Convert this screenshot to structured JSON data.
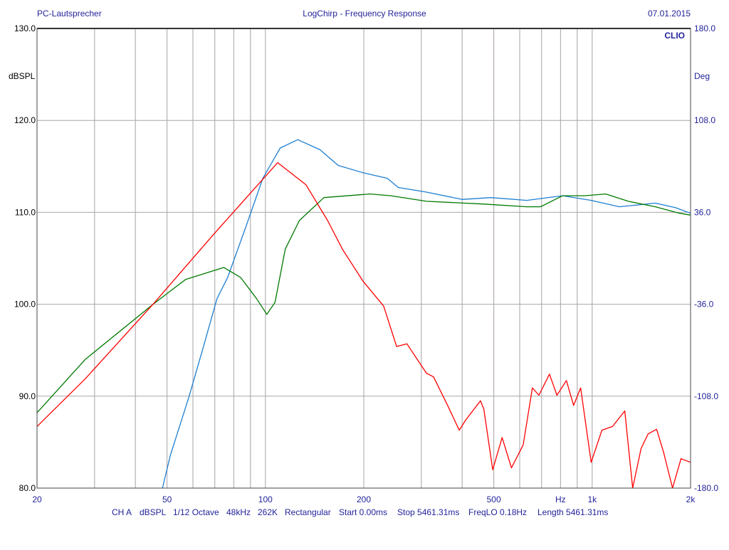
{
  "header": {
    "left": "PC-Lautsprecher",
    "center": "LogChirp - Frequency Response",
    "right": "07.01.2015"
  },
  "brand": "CLIO",
  "footer": [
    "CH A",
    "dBSPL",
    "1/12 Octave",
    "48kHz",
    "262K",
    "Rectangular",
    "Start 0.00ms",
    "Stop 5461.31ms",
    "FreqLO 0.18Hz",
    "Length 5461.31ms"
  ],
  "chart_data": {
    "type": "line",
    "title": "LogChirp - Frequency Response",
    "xlabel": "Hz",
    "ylabel": "dBSPL",
    "y2label": "Deg",
    "xscale": "log",
    "xlim": [
      20,
      2000
    ],
    "ylim": [
      80,
      130
    ],
    "y2lim": [
      -180,
      180
    ],
    "grid": true,
    "x_gridlines": [
      30,
      40,
      50,
      60,
      70,
      80,
      90,
      100,
      200,
      300,
      400,
      500,
      600,
      700,
      800,
      900,
      1000,
      2000
    ],
    "y_gridlines": [
      90,
      100,
      110,
      120
    ],
    "x_ticks": [
      {
        "v": 20,
        "label": "20"
      },
      {
        "v": 50,
        "label": "50"
      },
      {
        "v": 100,
        "label": "100"
      },
      {
        "v": 200,
        "label": "200"
      },
      {
        "v": 500,
        "label": "500"
      },
      {
        "v": 800,
        "label": "Hz"
      },
      {
        "v": 1000,
        "label": "1k"
      },
      {
        "v": 2000,
        "label": "2k"
      }
    ],
    "y_ticks": [
      {
        "v": 130,
        "label": "130.0"
      },
      {
        "v": 120,
        "label": "120.0"
      },
      {
        "v": 110,
        "label": "110.0"
      },
      {
        "v": 100,
        "label": "100.0"
      },
      {
        "v": 90,
        "label": "90.0"
      },
      {
        "v": 80,
        "label": "80.0"
      }
    ],
    "y2_ticks": [
      {
        "v": 130,
        "label": "180.0"
      },
      {
        "v": 120,
        "label": "108.0"
      },
      {
        "v": 110,
        "label": "36.0"
      },
      {
        "v": 100,
        "label": "-36.0"
      },
      {
        "v": 90,
        "label": "-108.0"
      },
      {
        "v": 80,
        "label": "-180.0"
      }
    ],
    "series": [
      {
        "name": "blue",
        "color": "#1e7fd2",
        "points": [
          [
            48.4,
            80
          ],
          [
            51.2,
            83.6
          ],
          [
            58.2,
            89.8
          ],
          [
            64.4,
            95.2
          ],
          [
            71.1,
            100.6
          ],
          [
            76.6,
            102.9
          ],
          [
            86.9,
            108.3
          ],
          [
            98.2,
            113.7
          ],
          [
            111,
            117.0
          ],
          [
            125.6,
            117.9
          ],
          [
            147,
            116.8
          ],
          [
            167,
            115.1
          ],
          [
            199,
            114.3
          ],
          [
            236,
            113.7
          ],
          [
            255,
            112.7
          ],
          [
            311,
            112.2
          ],
          [
            400,
            111.4
          ],
          [
            490,
            111.6
          ],
          [
            631,
            111.3
          ],
          [
            812,
            111.8
          ],
          [
            993,
            111.3
          ],
          [
            1212,
            110.6
          ],
          [
            1560,
            111.0
          ],
          [
            1800,
            110.5
          ],
          [
            2000,
            109.9
          ]
        ]
      },
      {
        "name": "green",
        "color": "#007a00",
        "points": [
          [
            20,
            88.2
          ],
          [
            28.1,
            94.0
          ],
          [
            45.3,
            100
          ],
          [
            57,
            102.7
          ],
          [
            74.6,
            104.0
          ],
          [
            84,
            102.9
          ],
          [
            94,
            100.6
          ],
          [
            101,
            98.9
          ],
          [
            107,
            100.2
          ],
          [
            115,
            106
          ],
          [
            127,
            109.1
          ],
          [
            151,
            111.6
          ],
          [
            209,
            112.0
          ],
          [
            242,
            111.8
          ],
          [
            311,
            111.2
          ],
          [
            466,
            110.9
          ],
          [
            631,
            110.6
          ],
          [
            695,
            110.6
          ],
          [
            812,
            111.8
          ],
          [
            946,
            111.8
          ],
          [
            1100,
            112.0
          ],
          [
            1290,
            111.2
          ],
          [
            1560,
            110.6
          ],
          [
            1850,
            109.9
          ],
          [
            2000,
            109.7
          ]
        ]
      },
      {
        "name": "red",
        "color": "#ff0000",
        "points": [
          [
            20,
            86.7
          ],
          [
            28.1,
            91.9
          ],
          [
            45.3,
            100.0
          ],
          [
            69.4,
            107.6
          ],
          [
            109,
            115.4
          ],
          [
            133,
            113.0
          ],
          [
            155,
            109.1
          ],
          [
            172,
            106
          ],
          [
            199,
            102.5
          ],
          [
            230,
            99.8
          ],
          [
            252,
            95.4
          ],
          [
            271,
            95.7
          ],
          [
            311,
            92.5
          ],
          [
            327,
            92.1
          ],
          [
            361,
            89.0
          ],
          [
            392,
            86.3
          ],
          [
            410,
            87.4
          ],
          [
            455,
            89.5
          ],
          [
            466,
            88.6
          ],
          [
            496,
            82.0
          ],
          [
            530,
            85.5
          ],
          [
            566,
            82.2
          ],
          [
            615,
            84.7
          ],
          [
            656,
            90.9
          ],
          [
            687,
            90.1
          ],
          [
            740,
            92.4
          ],
          [
            780,
            90.1
          ],
          [
            834,
            91.7
          ],
          [
            877,
            89.0
          ],
          [
            922,
            90.9
          ],
          [
            993,
            82.8
          ],
          [
            1071,
            86.3
          ],
          [
            1154,
            86.7
          ],
          [
            1258,
            88.4
          ],
          [
            1330,
            80
          ],
          [
            1411,
            84.3
          ],
          [
            1483,
            85.9
          ],
          [
            1574,
            86.4
          ],
          [
            1654,
            83.9
          ],
          [
            1762,
            80
          ],
          [
            1870,
            83.2
          ],
          [
            2000,
            82.8
          ]
        ]
      }
    ]
  }
}
